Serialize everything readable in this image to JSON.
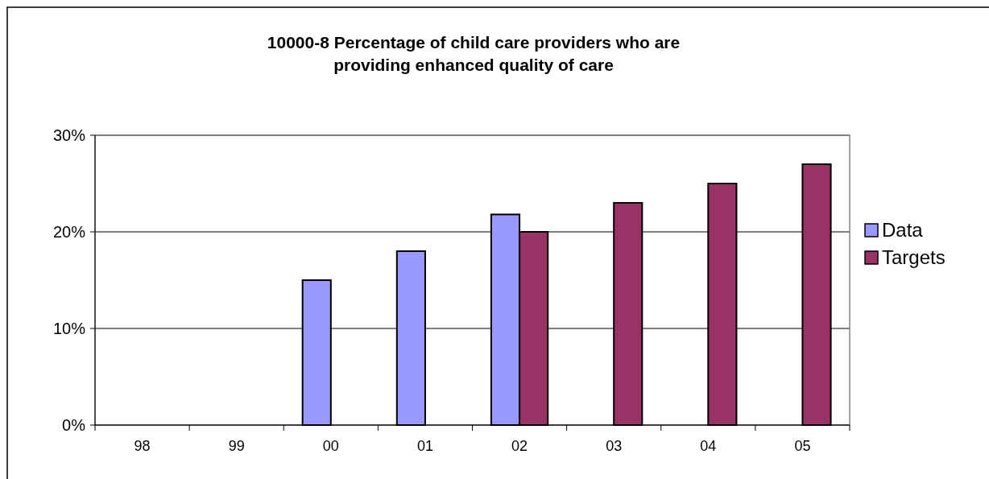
{
  "chart_data": {
    "type": "bar",
    "title": "10000-8  Percentage of child care providers who are providing enhanced quality of care",
    "categories": [
      "98",
      "99",
      "00",
      "01",
      "02",
      "03",
      "04",
      "05"
    ],
    "series": [
      {
        "name": "Data",
        "color": "#9999ff",
        "values": [
          null,
          null,
          15,
          18,
          21.8,
          null,
          null,
          null
        ]
      },
      {
        "name": "Targets",
        "color": "#993366",
        "values": [
          null,
          null,
          null,
          null,
          20,
          23,
          25,
          27
        ]
      }
    ],
    "ylim": [
      0,
      30
    ],
    "yticks": [
      {
        "value": 0,
        "label": "0%"
      },
      {
        "value": 10,
        "label": "10%"
      },
      {
        "value": 20,
        "label": "20%"
      },
      {
        "value": 30,
        "label": "30%"
      }
    ],
    "grid": "y",
    "legend": "right"
  }
}
